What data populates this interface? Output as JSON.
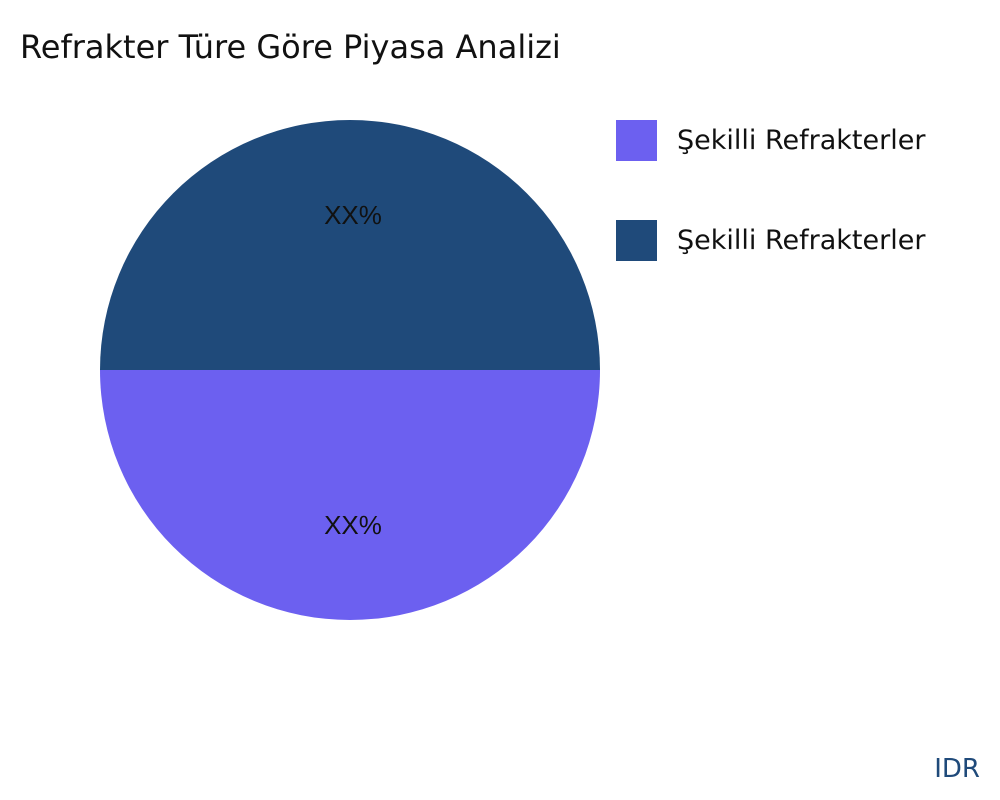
{
  "chart_data": {
    "type": "pie",
    "title": "Refrakter Türe Göre Piyasa Analizi",
    "slices": [
      {
        "label": "Şekilli Refrakterler",
        "value": 50,
        "display": "XX%",
        "color": "#6c60f0"
      },
      {
        "label": "Şekilli Refrakterler",
        "value": 50,
        "display": "XX%",
        "color": "#1f4a7a"
      }
    ],
    "legend_placement": "right"
  },
  "brand": "IDR"
}
